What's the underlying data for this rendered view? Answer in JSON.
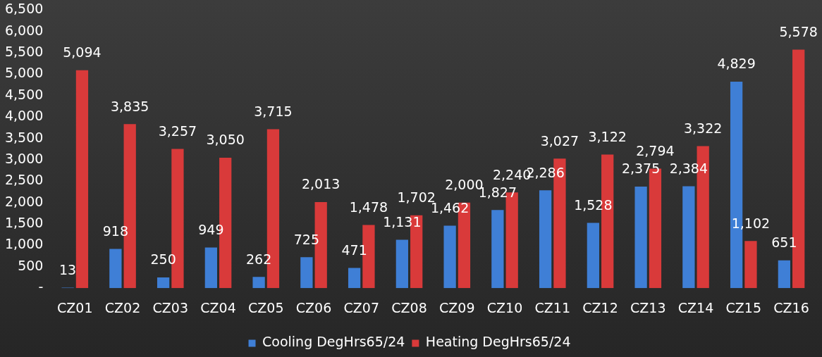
{
  "chart_data": {
    "type": "bar",
    "categories": [
      "CZ01",
      "CZ02",
      "CZ03",
      "CZ04",
      "CZ05",
      "CZ06",
      "CZ07",
      "CZ08",
      "CZ09",
      "CZ10",
      "CZ11",
      "CZ12",
      "CZ13",
      "CZ14",
      "CZ15",
      "CZ16"
    ],
    "series": [
      {
        "name": "Cooling DegHrs65/24",
        "color": "#3f7fd6",
        "values": [
          13,
          918,
          250,
          949,
          262,
          725,
          471,
          1131,
          1462,
          1827,
          2286,
          1528,
          2375,
          2384,
          4829,
          651
        ],
        "value_labels": [
          "13",
          "918",
          "250",
          "949",
          "262",
          "725",
          "471",
          "1,131",
          "1,462",
          "1,827",
          "2,286",
          "1,528",
          "2,375",
          "2,384",
          "4,829",
          "651"
        ]
      },
      {
        "name": "Heating DegHrs65/24",
        "color": "#d93a3a",
        "values": [
          5094,
          3835,
          3257,
          3050,
          3715,
          2013,
          1478,
          1702,
          2000,
          2240,
          3027,
          3122,
          2794,
          3322,
          1102,
          5578
        ],
        "value_labels": [
          "5,094",
          "3,835",
          "3,257",
          "3,050",
          "3,715",
          "2,013",
          "1,478",
          "1,702",
          "2,000",
          "2,240",
          "3,027",
          "3,122",
          "2,794",
          "3,322",
          "1,102",
          "5,578"
        ]
      }
    ],
    "ylim": [
      0,
      6500
    ],
    "yticks": [
      {
        "value": 0,
        "label": "-"
      },
      500,
      {
        "value": 1000,
        "label": "1,000"
      },
      {
        "value": 1500,
        "label": "1,500"
      },
      {
        "value": 2000,
        "label": "2,000"
      },
      {
        "value": 2500,
        "label": "2,500"
      },
      {
        "value": 3000,
        "label": "3,000"
      },
      {
        "value": 3500,
        "label": "3,500"
      },
      {
        "value": 4000,
        "label": "4,000"
      },
      {
        "value": 4500,
        "label": "4,500"
      },
      {
        "value": 5000,
        "label": "5,000"
      },
      {
        "value": 5500,
        "label": "5,500"
      },
      {
        "value": 6000,
        "label": "6,000"
      },
      {
        "value": 6500,
        "label": "6,500"
      }
    ],
    "grid": false,
    "legend": "bottom"
  }
}
